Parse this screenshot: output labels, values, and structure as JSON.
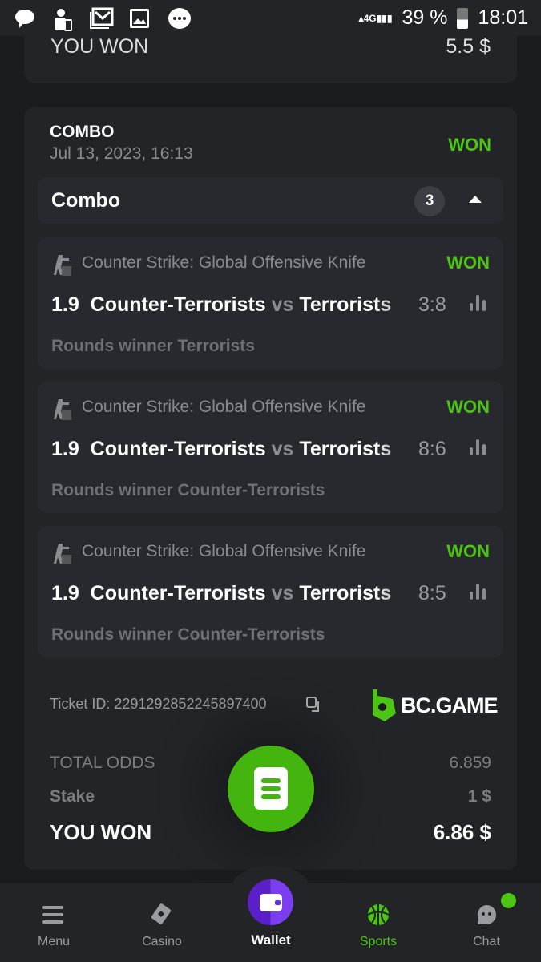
{
  "status_bar": {
    "battery": "39 %",
    "time": "18:01",
    "network": "4G"
  },
  "prev_ticket": {
    "won_label": "YOU WON",
    "won_value": "5.5 $"
  },
  "ticket": {
    "type": "COMBO",
    "date": "Jul 13, 2023, 16:13",
    "status": "WON",
    "group_label": "Combo",
    "count": "3",
    "legs": [
      {
        "league": "Counter Strike: Global Offensive Knife",
        "status": "WON",
        "odds": "1.9",
        "home": "Counter-Terrorists",
        "vs": "vs",
        "away": "Terrorists",
        "score": "3:8",
        "market": "Rounds winner Terrorists"
      },
      {
        "league": "Counter Strike: Global Offensive Knife",
        "status": "WON",
        "odds": "1.9",
        "home": "Counter-Terrorists",
        "vs": "vs",
        "away": "Terrorists",
        "score": "8:6",
        "market": "Rounds winner Counter-Terrorists"
      },
      {
        "league": "Counter Strike: Global Offensive Knife",
        "status": "WON",
        "odds": "1.9",
        "home": "Counter-Terrorists",
        "vs": "vs",
        "away": "Terrorists",
        "score": "8:5",
        "market": "Rounds winner Counter-Terrorists"
      }
    ],
    "ticket_id": "Ticket ID: 2291292852245897400",
    "brand": "BC.GAME",
    "total_odds_label": "TOTAL ODDS",
    "total_odds": "6.859",
    "stake_label": "Stake",
    "stake": "1 $",
    "won_label": "YOU WON",
    "won_value": "6.86 $"
  },
  "nav": {
    "menu": "Menu",
    "casino": "Casino",
    "wallet": "Wallet",
    "sports": "Sports",
    "chat": "Chat"
  },
  "colors": {
    "accent": "#4cc514",
    "wallet": "#6b2fe0",
    "bg": "#1b1c1f"
  }
}
